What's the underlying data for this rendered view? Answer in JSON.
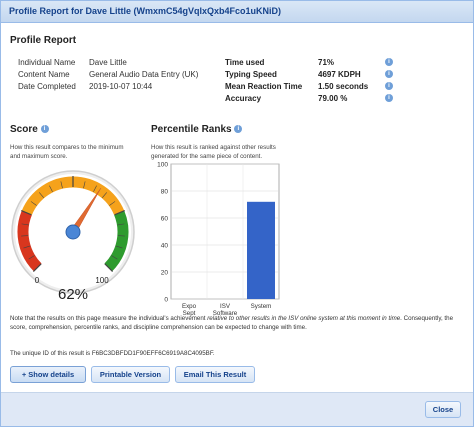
{
  "window": {
    "title": "Profile Report for Dave Little (WmxmC54gVqlxQxb4Fco1uKNiD)"
  },
  "profile": {
    "heading": "Profile Report",
    "details": [
      {
        "label": "Individual Name",
        "value": "Dave Little"
      },
      {
        "label": "Content Name",
        "value": "General Audio Data Entry (UK)"
      },
      {
        "label": "Date Completed",
        "value": "2019-10-07 10:44"
      }
    ],
    "stats": [
      {
        "label": "Time used",
        "value": "71%"
      },
      {
        "label": "Typing Speed",
        "value": "4697 KDPH"
      },
      {
        "label": "Mean Reaction Time",
        "value": "1.50 seconds"
      },
      {
        "label": "Accuracy",
        "value": "79.00 %"
      }
    ]
  },
  "score": {
    "heading": "Score",
    "description": "How this result compares to the minimum and maximum score.",
    "min_label": "0",
    "max_label": "100",
    "value": 62,
    "value_text": "62%",
    "colors": {
      "low": "#d8361e",
      "mid": "#f5a21b",
      "high": "#2e9b2e",
      "needle": "#e06a30",
      "hub": "#4a86d6"
    }
  },
  "percentile": {
    "heading": "Percentile Ranks",
    "description": "How this result is ranked against other results generated for the same piece of content."
  },
  "chart_data": {
    "type": "bar",
    "categories": [
      "Expo Sept",
      "ISV Software",
      "System"
    ],
    "values": [
      0,
      0,
      72
    ],
    "ylim": [
      0,
      100
    ],
    "yticks": [
      "0",
      "20",
      "40",
      "60",
      "80",
      "100"
    ],
    "bar_color": "#3464c8",
    "grid": true
  },
  "note": {
    "pre": "Note that the results on this page measure the individual's achievement ",
    "italic": "relative to other results in the ISV online system at this moment in time",
    "post": ". Consequently, the score, comprehension, percentile ranks, and discipline comprehension can be expected to change with time.",
    "unique_id": "The unique ID of this result is F6BC3DBFDD1F90EFF6C6919A8C4095BF."
  },
  "buttons": {
    "show_details": "+ Show details",
    "printable": "Printable Version",
    "email": "Email This Result",
    "close": "Close"
  }
}
